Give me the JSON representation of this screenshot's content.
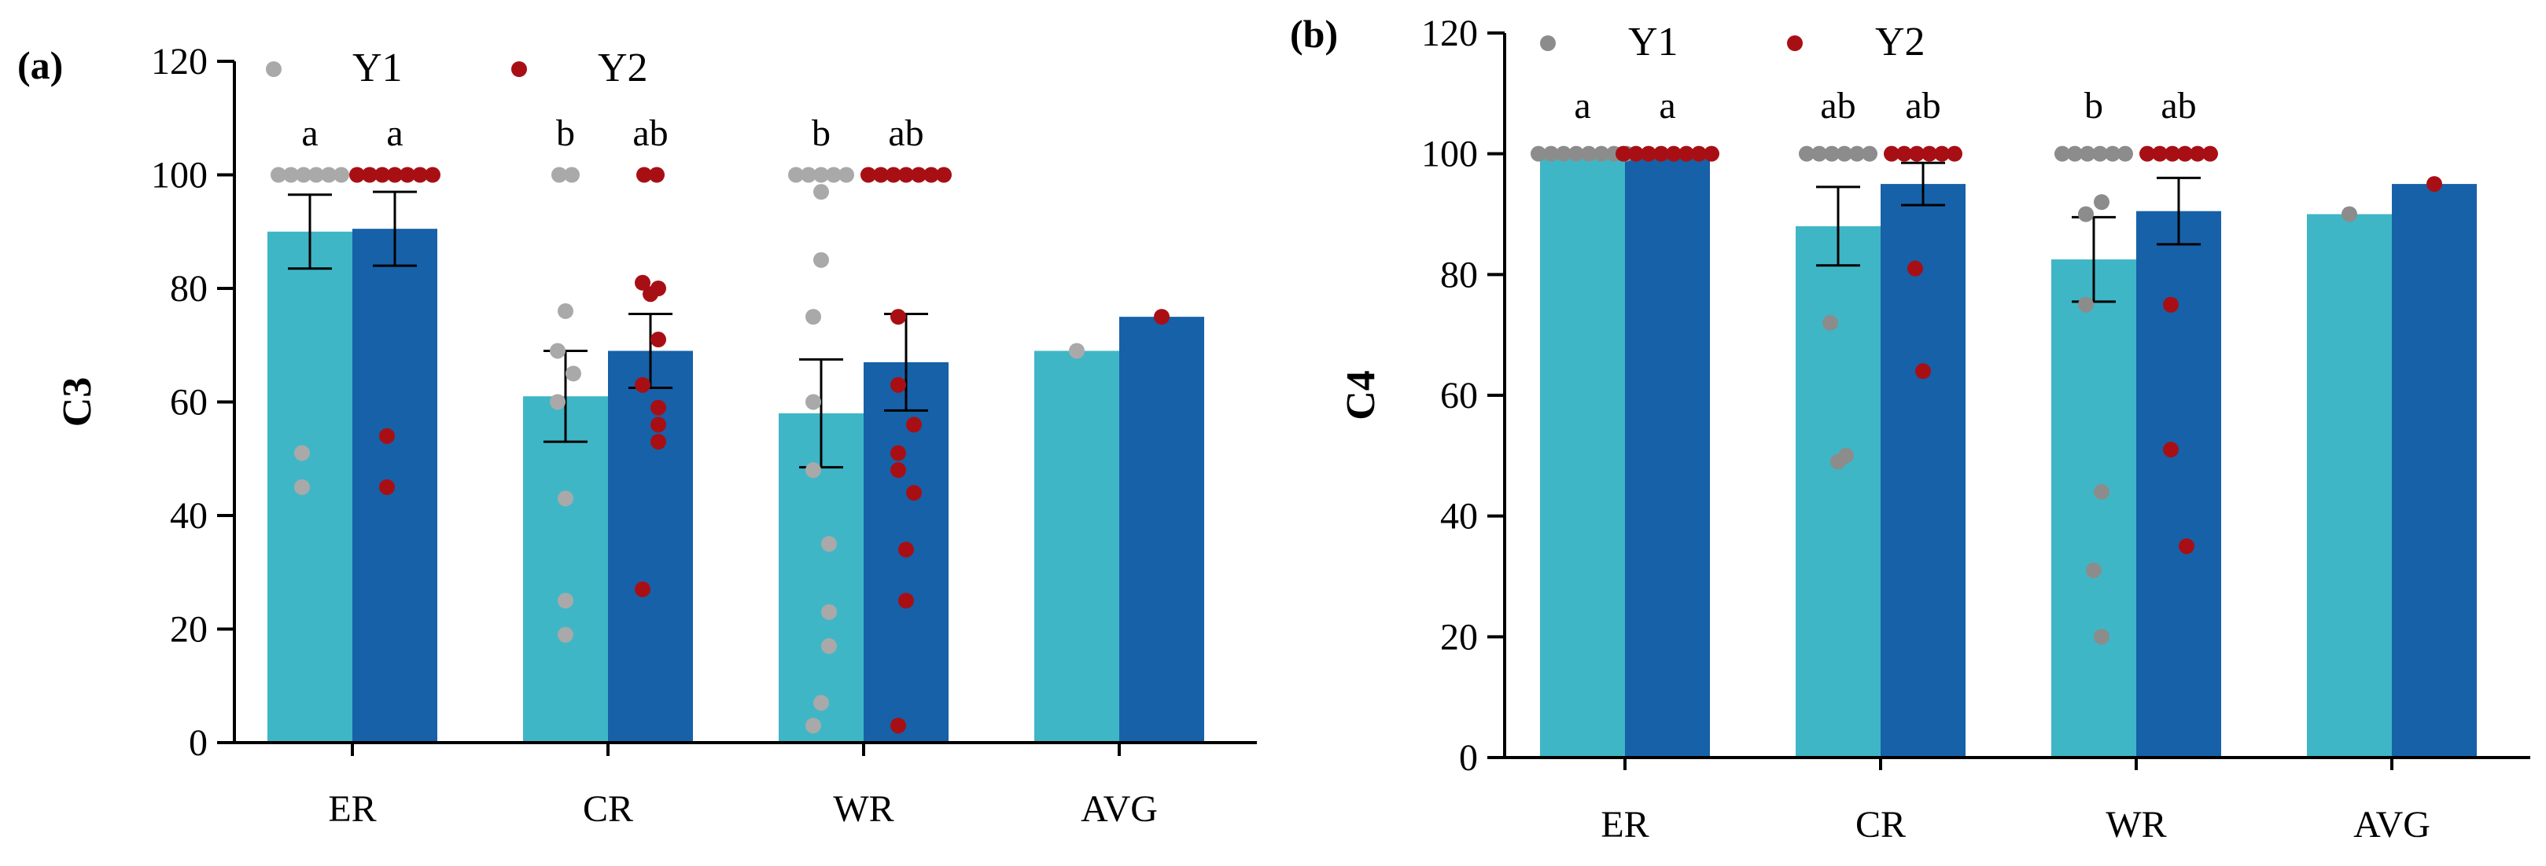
{
  "colors": {
    "y1_bar": "#3fb6c6",
    "y2_bar": "#1761a9",
    "y1_point": "#a9a9a9",
    "y2_point": "#a80f14",
    "y1_point_b": "#8c8c8c"
  },
  "chart_data": [
    {
      "type": "bar",
      "panel": "(a)",
      "ylabel": "C3",
      "xlabel": "",
      "ylim": [
        0,
        120
      ],
      "yticks": [
        0,
        20,
        40,
        60,
        80,
        100,
        120
      ],
      "categories": [
        "ER",
        "CR",
        "WR",
        "AVG"
      ],
      "legend": [
        "Y1",
        "Y2"
      ],
      "legend_position": "top",
      "series": [
        {
          "name": "Y1",
          "values": [
            90,
            61,
            58,
            69
          ],
          "errors": [
            6.5,
            8,
            9.5,
            null
          ],
          "letters": [
            "a",
            "b",
            "b",
            ""
          ],
          "points": [
            [
              100,
              100,
              100,
              100,
              100,
              100,
              51,
              45
            ],
            [
              100,
              100,
              76,
              69,
              65,
              60,
              43,
              25,
              19
            ],
            [
              100,
              100,
              100,
              100,
              100,
              97,
              85,
              75,
              60,
              48,
              35,
              23,
              17,
              7,
              3
            ],
            [
              69
            ]
          ]
        },
        {
          "name": "Y2",
          "values": [
            90.5,
            69,
            67,
            75
          ],
          "errors": [
            6.5,
            6.5,
            8.5,
            null
          ],
          "letters": [
            "a",
            "ab",
            "ab",
            ""
          ],
          "points": [
            [
              100,
              100,
              100,
              100,
              100,
              100,
              100,
              54,
              45
            ],
            [
              100,
              100,
              81,
              80,
              79,
              71,
              63,
              59,
              56,
              53,
              27
            ],
            [
              100,
              100,
              100,
              100,
              100,
              100,
              100,
              75,
              63,
              56,
              51,
              48,
              44,
              34,
              25,
              3
            ],
            [
              75
            ]
          ]
        }
      ]
    },
    {
      "type": "bar",
      "panel": "(b)",
      "ylabel": "C4",
      "xlabel": "",
      "ylim": [
        0,
        120
      ],
      "yticks": [
        0,
        20,
        40,
        60,
        80,
        100,
        120
      ],
      "categories": [
        "ER",
        "CR",
        "WR",
        "AVG"
      ],
      "legend": [
        "Y1",
        "Y2"
      ],
      "legend_position": "top",
      "series": [
        {
          "name": "Y1",
          "values": [
            100,
            88,
            82.5,
            90
          ],
          "errors": [
            0,
            6.5,
            7,
            null
          ],
          "letters": [
            "a",
            "ab",
            "b",
            ""
          ],
          "points": [
            [
              100,
              100,
              100,
              100,
              100,
              100,
              100,
              100
            ],
            [
              100,
              100,
              100,
              100,
              100,
              100,
              72,
              50,
              49
            ],
            [
              100,
              100,
              100,
              100,
              100,
              100,
              92,
              90,
              75,
              44,
              31,
              20
            ],
            [
              90
            ]
          ]
        },
        {
          "name": "Y2",
          "values": [
            100,
            95,
            90.5,
            95
          ],
          "errors": [
            0,
            3.5,
            5.5,
            null
          ],
          "letters": [
            "a",
            "ab",
            "ab",
            ""
          ],
          "points": [
            [
              100,
              100,
              100,
              100,
              100,
              100,
              100,
              100
            ],
            [
              100,
              100,
              100,
              100,
              100,
              100,
              81,
              64
            ],
            [
              100,
              100,
              100,
              100,
              100,
              100,
              75,
              51,
              35
            ],
            [
              95
            ]
          ]
        }
      ]
    }
  ]
}
